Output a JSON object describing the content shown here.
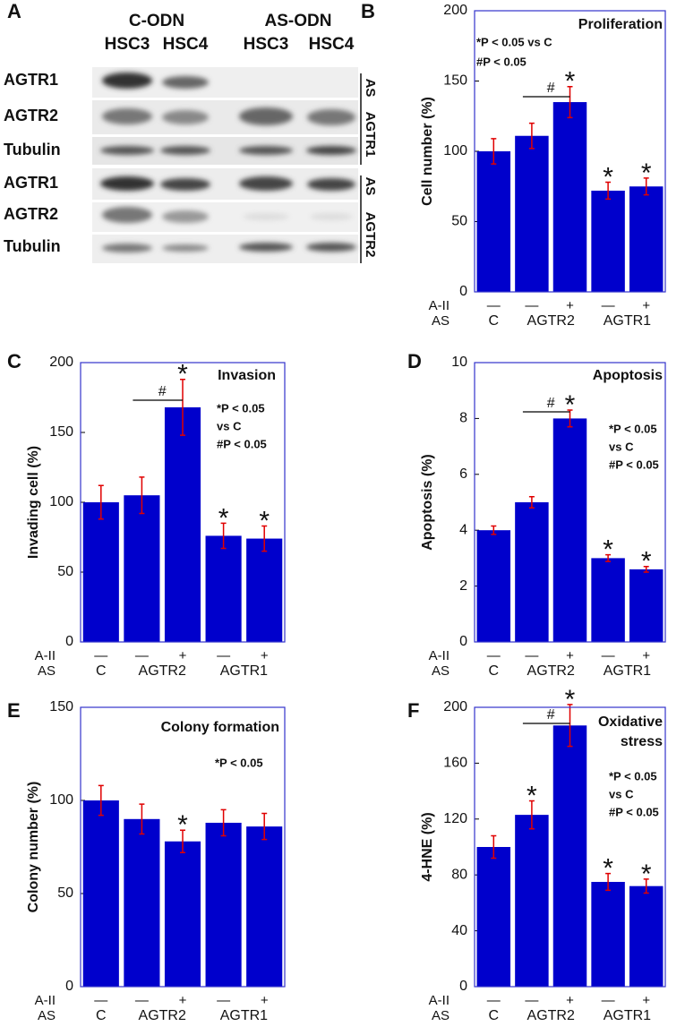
{
  "blot": {
    "panel": "A",
    "groups": [
      "C-ODN",
      "AS-ODN"
    ],
    "lanes": [
      "HSC3",
      "HSC4",
      "HSC3",
      "HSC4"
    ],
    "rows": [
      "AGTR1",
      "AGTR2",
      "Tubulin",
      "AGTR1",
      "AGTR2",
      "Tubulin"
    ],
    "side_labels": [
      [
        "AS",
        "AGTR1"
      ],
      [
        "AS",
        "AGTR2"
      ]
    ]
  },
  "chart_data": [
    {
      "type": "bar",
      "panel": "B",
      "title": [
        "Proliferation"
      ],
      "ylabel": "Cell number (%)",
      "notes": [
        "*P < 0.05 vs C",
        "#P < 0.05"
      ],
      "row_titles": [
        "A-II",
        "AS"
      ],
      "categories": [
        "—",
        "—",
        "+",
        "—",
        "+"
      ],
      "groups": [
        "C",
        "AGTR2",
        "AGTR1"
      ],
      "values": [
        100,
        111,
        135,
        72,
        75
      ],
      "errors": [
        9,
        9,
        11,
        6,
        6
      ],
      "stars": [
        null,
        null,
        "*",
        "*",
        "*"
      ],
      "bracket_label": "#",
      "color": "#0000cc",
      "error_color": "#e00000",
      "ylim": [
        0,
        200
      ],
      "yticks": [
        0,
        50,
        100,
        150,
        200
      ]
    },
    {
      "type": "bar",
      "panel": "C",
      "title": [
        "Invasion"
      ],
      "ylabel": "Invading cell (%)",
      "notes": [
        "*P < 0.05",
        "vs C",
        "#P < 0.05"
      ],
      "row_titles": [
        "A-II",
        "AS"
      ],
      "categories": [
        "—",
        "—",
        "+",
        "—",
        "+"
      ],
      "groups": [
        "C",
        "AGTR2",
        "AGTR1"
      ],
      "values": [
        100,
        105,
        168,
        76,
        74
      ],
      "errors": [
        12,
        13,
        20,
        9,
        9
      ],
      "stars": [
        null,
        null,
        "*",
        "*",
        "*"
      ],
      "bracket_label": "#",
      "color": "#0000cc",
      "error_color": "#e00000",
      "ylim": [
        0,
        200
      ],
      "yticks": [
        0,
        50,
        100,
        150,
        200
      ]
    },
    {
      "type": "bar",
      "panel": "D",
      "title": [
        "Apoptosis"
      ],
      "ylabel": "Apoptosis (%)",
      "notes": [
        "*P < 0.05",
        "vs C",
        "#P < 0.05"
      ],
      "row_titles": [
        "A-II",
        "AS"
      ],
      "categories": [
        "—",
        "—",
        "+",
        "—",
        "+"
      ],
      "groups": [
        "C",
        "AGTR2",
        "AGTR1"
      ],
      "values": [
        4,
        5,
        8,
        3,
        2.6
      ],
      "errors": [
        0.15,
        0.2,
        0.3,
        0.12,
        0.1
      ],
      "stars": [
        null,
        null,
        "*",
        "*",
        "*"
      ],
      "bracket_label": "#",
      "color": "#0000cc",
      "error_color": "#e00000",
      "ylim": [
        0,
        10
      ],
      "yticks": [
        0,
        2,
        4,
        6,
        8,
        10
      ]
    },
    {
      "type": "bar",
      "panel": "E",
      "title": [
        "Colony formation"
      ],
      "ylabel": "Colony number (%)",
      "notes": [
        "*P < 0.05"
      ],
      "row_titles": [
        "A-II",
        "AS"
      ],
      "categories": [
        "—",
        "—",
        "+",
        "—",
        "+"
      ],
      "groups": [
        "C",
        "AGTR2",
        "AGTR1"
      ],
      "values": [
        100,
        90,
        78,
        88,
        86
      ],
      "errors": [
        8,
        8,
        6,
        7,
        7
      ],
      "stars": [
        null,
        null,
        "*",
        null,
        null
      ],
      "color": "#0000cc",
      "error_color": "#e00000",
      "ylim": [
        0,
        150
      ],
      "yticks": [
        0,
        50,
        100,
        150
      ]
    },
    {
      "type": "bar",
      "panel": "F",
      "title": [
        "Oxidative",
        "stress"
      ],
      "ylabel": "4-HNE (%)",
      "notes": [
        "*P < 0.05",
        "vs C",
        "#P < 0.05"
      ],
      "row_titles": [
        "A-II",
        "AS"
      ],
      "categories": [
        "—",
        "—",
        "+",
        "—",
        "+"
      ],
      "groups": [
        "C",
        "AGTR2",
        "AGTR1"
      ],
      "values": [
        100,
        123,
        187,
        75,
        72
      ],
      "errors": [
        8,
        10,
        15,
        6,
        5
      ],
      "stars": [
        null,
        "*",
        "*",
        "*",
        "*"
      ],
      "bracket_label": "#",
      "color": "#0000cc",
      "error_color": "#e00000",
      "ylim": [
        0,
        200
      ],
      "yticks": [
        0,
        40,
        80,
        120,
        160,
        200
      ]
    }
  ]
}
